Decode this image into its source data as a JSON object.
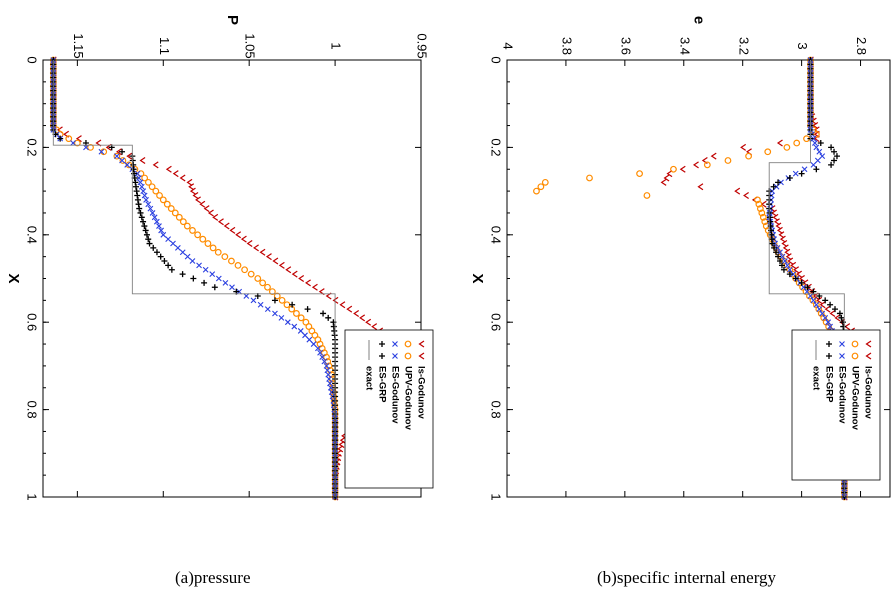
{
  "captions": {
    "a": "(a)pressure",
    "b": "(b)specific internal energy"
  },
  "legend": {
    "entries": [
      {
        "name": "ls-Godunov",
        "marker": "<",
        "color": "#c00000"
      },
      {
        "name": "UPV-Godunov",
        "marker": "o",
        "color": "#ff8c00"
      },
      {
        "name": "ES-Godunov",
        "marker": "x",
        "color": "#2a3fe0"
      },
      {
        "name": "ES-GRP",
        "marker": "+",
        "color": "#000000"
      },
      {
        "name": "exact",
        "marker": "line",
        "color": "#808080"
      }
    ]
  },
  "chart_data": [
    {
      "type": "line",
      "orientation": "rotated 90 degrees clockwise",
      "xlabel": "X",
      "ylabel": "P",
      "xlim": [
        0,
        1
      ],
      "ylim": [
        0.95,
        1.17
      ],
      "xticks": [
        "0",
        "0.2",
        "0.4",
        "0.6",
        "0.8",
        "1"
      ],
      "yticks": [
        "0.95",
        "1",
        "1.05",
        "1.1",
        "1.15"
      ],
      "legend_position": "lower-right",
      "grid": false,
      "series": [
        {
          "name": "ls-Godunov",
          "x": [
            0.0,
            0.15,
            0.175,
            0.19,
            0.22,
            0.25,
            0.28,
            0.3,
            0.32,
            0.36,
            0.42,
            0.5,
            0.58,
            0.62,
            0.66,
            0.7,
            0.74,
            0.78,
            0.82,
            0.86,
            0.9,
            0.95,
            1.0
          ],
          "y": [
            1.164,
            1.164,
            1.155,
            1.138,
            1.12,
            1.097,
            1.085,
            1.083,
            1.08,
            1.07,
            1.05,
            1.02,
            0.988,
            0.974,
            0.962,
            0.958,
            0.962,
            0.972,
            0.986,
            0.995,
            0.998,
            1.0,
            1.0
          ]
        },
        {
          "name": "UPV-Godunov",
          "x": [
            0.0,
            0.15,
            0.17,
            0.19,
            0.22,
            0.26,
            0.32,
            0.38,
            0.44,
            0.5,
            0.56,
            0.6,
            0.64,
            0.68,
            0.72,
            0.76,
            0.8,
            0.86,
            1.0
          ],
          "y": [
            1.164,
            1.164,
            1.16,
            1.15,
            1.127,
            1.113,
            1.1,
            1.086,
            1.068,
            1.045,
            1.028,
            1.017,
            1.01,
            1.005,
            1.002,
            1.001,
            1.0,
            1.0,
            1.0
          ]
        },
        {
          "name": "ES-Godunov",
          "x": [
            0.0,
            0.16,
            0.18,
            0.2,
            0.22,
            0.26,
            0.32,
            0.4,
            0.46,
            0.52,
            0.58,
            0.62,
            0.66,
            0.7,
            0.74,
            0.78,
            0.82,
            0.86,
            1.0
          ],
          "y": [
            1.164,
            1.164,
            1.16,
            1.145,
            1.127,
            1.115,
            1.11,
            1.1,
            1.083,
            1.06,
            1.035,
            1.02,
            1.01,
            1.005,
            1.003,
            1.001,
            1.0,
            1.0,
            1.0
          ]
        },
        {
          "name": "ES-GRP",
          "x": [
            0.0,
            0.165,
            0.18,
            0.2,
            0.22,
            0.26,
            0.34,
            0.42,
            0.48,
            0.52,
            0.54,
            0.56,
            0.58,
            0.6,
            0.64,
            1.0
          ],
          "y": [
            1.164,
            1.164,
            1.16,
            1.13,
            1.118,
            1.117,
            1.114,
            1.108,
            1.095,
            1.07,
            1.045,
            1.025,
            1.007,
            1.001,
            1.0,
            1.0
          ]
        },
        {
          "name": "exact",
          "x": [
            0.0,
            0.195,
            0.195,
            0.535,
            0.535,
            1.0
          ],
          "y": [
            1.164,
            1.164,
            1.118,
            1.118,
            1.0,
            1.0
          ]
        }
      ]
    },
    {
      "type": "line",
      "orientation": "rotated 90 degrees clockwise",
      "xlabel": "X",
      "ylabel": "e",
      "xlim": [
        0,
        1
      ],
      "ylim": [
        2.7,
        4.0
      ],
      "xticks": [
        "0",
        "0.2",
        "0.4",
        "0.6",
        "0.8",
        "1"
      ],
      "yticks": [
        "2.8",
        "3",
        "3.2",
        "3.4",
        "3.6",
        "3.8",
        "4"
      ],
      "legend_position": "lower-right",
      "grid": false,
      "series": [
        {
          "name": "ls-Godunov",
          "x": [
            0.0,
            0.12,
            0.14,
            0.16,
            0.18,
            0.2,
            0.21,
            0.22,
            0.24,
            0.26,
            0.28,
            0.3,
            0.34,
            0.4,
            0.46,
            0.5,
            0.56,
            0.62,
            0.66,
            0.7,
            0.74,
            0.78,
            0.84,
            0.9,
            1.0
          ],
          "y": [
            2.97,
            2.97,
            2.96,
            2.95,
            2.95,
            3.2,
            3.18,
            3.3,
            3.36,
            3.45,
            3.47,
            3.22,
            3.1,
            3.07,
            3.04,
            3.0,
            2.93,
            2.83,
            2.8,
            2.79,
            2.8,
            2.83,
            2.85,
            2.855,
            2.855
          ]
        },
        {
          "name": "UPV-Godunov",
          "x": [
            0.0,
            0.15,
            0.17,
            0.2,
            0.22,
            0.24,
            0.26,
            0.27,
            0.28,
            0.3,
            0.32,
            0.38,
            0.44,
            0.5,
            0.56,
            0.62,
            0.68,
            0.74,
            0.8,
            1.0
          ],
          "y": [
            2.97,
            2.97,
            2.95,
            3.05,
            3.18,
            3.32,
            3.55,
            3.72,
            3.87,
            3.9,
            3.15,
            3.12,
            3.08,
            3.02,
            2.95,
            2.9,
            2.87,
            2.86,
            2.855,
            2.855
          ]
        },
        {
          "name": "ES-Godunov",
          "x": [
            0.0,
            0.16,
            0.2,
            0.22,
            0.24,
            0.26,
            0.28,
            0.3,
            0.36,
            0.42,
            0.48,
            0.54,
            0.6,
            0.66,
            0.72,
            0.78,
            1.0
          ],
          "y": [
            2.97,
            2.97,
            2.95,
            2.93,
            2.96,
            3.02,
            3.07,
            3.1,
            3.11,
            3.09,
            3.04,
            2.97,
            2.91,
            2.87,
            2.86,
            2.855,
            2.855
          ]
        },
        {
          "name": "ES-GRP",
          "x": [
            0.0,
            0.18,
            0.2,
            0.22,
            0.24,
            0.26,
            0.28,
            0.3,
            0.34,
            0.42,
            0.48,
            0.52,
            0.55,
            0.58,
            0.6,
            0.64,
            1.0
          ],
          "y": [
            2.97,
            2.97,
            2.9,
            2.88,
            2.9,
            3.0,
            3.08,
            3.11,
            3.11,
            3.1,
            3.06,
            2.98,
            2.92,
            2.87,
            2.86,
            2.855,
            2.855
          ]
        },
        {
          "name": "exact",
          "x": [
            0.0,
            0.235,
            0.235,
            0.535,
            0.535,
            1.0
          ],
          "y": [
            2.97,
            2.97,
            3.11,
            3.11,
            2.855,
            2.855
          ]
        }
      ]
    }
  ]
}
